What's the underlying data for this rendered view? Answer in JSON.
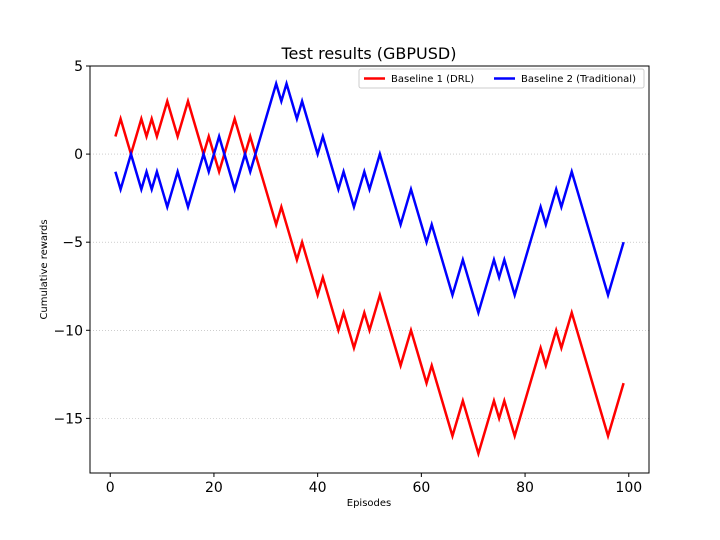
{
  "chart_data": {
    "type": "line",
    "title": "Test results (GBPUSD)",
    "xlabel": "Episodes",
    "ylabel": "Cumulative rewards",
    "xlim": [
      -3.9,
      103.9
    ],
    "ylim": [
      -18.1,
      5.0
    ],
    "xticks": [
      0,
      20,
      40,
      60,
      80,
      100
    ],
    "xtick_labels": [
      "0",
      "20",
      "40",
      "60",
      "80",
      "100"
    ],
    "yticks": [
      5,
      0,
      -5,
      -10,
      -15
    ],
    "ytick_labels": [
      "5",
      "0",
      "−5",
      "−10",
      "−15"
    ],
    "grid": "horizontal dotted lines at y ticks",
    "legend_position": "top-right",
    "series": [
      {
        "name": "Baseline 1 (DRL)",
        "color": "#ff0000",
        "x": [
          1,
          2,
          3,
          4,
          5,
          6,
          7,
          8,
          9,
          10,
          11,
          12,
          13,
          14,
          15,
          16,
          17,
          18,
          19,
          20,
          21,
          22,
          23,
          24,
          25,
          26,
          27,
          28,
          29,
          30,
          31,
          32,
          33,
          34,
          35,
          36,
          37,
          38,
          39,
          40,
          41,
          42,
          43,
          44,
          45,
          46,
          47,
          48,
          49,
          50,
          51,
          52,
          53,
          54,
          55,
          56,
          57,
          58,
          59,
          60,
          61,
          62,
          63,
          64,
          65,
          66,
          67,
          68,
          69,
          70,
          71,
          72,
          73,
          74,
          75,
          76,
          77,
          78,
          79,
          80,
          81,
          82,
          83,
          84,
          85,
          86,
          87,
          88,
          89,
          90,
          91,
          92,
          93,
          94,
          95,
          96,
          97,
          98,
          99
        ],
        "values": [
          1,
          2,
          1,
          0,
          1,
          2,
          1,
          2,
          1,
          2,
          3,
          2,
          1,
          2,
          3,
          2,
          1,
          0,
          1,
          0,
          -1,
          0,
          1,
          2,
          1,
          0,
          1,
          0,
          -1,
          -2,
          -3,
          -4,
          -3,
          -4,
          -5,
          -6,
          -5,
          -6,
          -7,
          -8,
          -7,
          -8,
          -9,
          -10,
          -9,
          -10,
          -11,
          -10,
          -9,
          -10,
          -9,
          -8,
          -9,
          -10,
          -11,
          -12,
          -11,
          -10,
          -11,
          -12,
          -13,
          -12,
          -13,
          -14,
          -15,
          -16,
          -15,
          -14,
          -15,
          -16,
          -17,
          -16,
          -15,
          -14,
          -15,
          -14,
          -15,
          -16,
          -15,
          -14,
          -13,
          -12,
          -11,
          -12,
          -11,
          -10,
          -11,
          -10,
          -9,
          -10,
          -11,
          -12,
          -13,
          -14,
          -15,
          -16,
          -15,
          -14,
          -13
        ]
      },
      {
        "name": "Baseline 2 (Traditional)",
        "color": "#0000ff",
        "x": [
          1,
          2,
          3,
          4,
          5,
          6,
          7,
          8,
          9,
          10,
          11,
          12,
          13,
          14,
          15,
          16,
          17,
          18,
          19,
          20,
          21,
          22,
          23,
          24,
          25,
          26,
          27,
          28,
          29,
          30,
          31,
          32,
          33,
          34,
          35,
          36,
          37,
          38,
          39,
          40,
          41,
          42,
          43,
          44,
          45,
          46,
          47,
          48,
          49,
          50,
          51,
          52,
          53,
          54,
          55,
          56,
          57,
          58,
          59,
          60,
          61,
          62,
          63,
          64,
          65,
          66,
          67,
          68,
          69,
          70,
          71,
          72,
          73,
          74,
          75,
          76,
          77,
          78,
          79,
          80,
          81,
          82,
          83,
          84,
          85,
          86,
          87,
          88,
          89,
          90,
          91,
          92,
          93,
          94,
          95,
          96,
          97,
          98,
          99
        ],
        "values": [
          -1,
          -2,
          -1,
          0,
          -1,
          -2,
          -1,
          -2,
          -1,
          -2,
          -3,
          -2,
          -1,
          -2,
          -3,
          -2,
          -1,
          0,
          -1,
          0,
          1,
          0,
          -1,
          -2,
          -1,
          0,
          -1,
          0,
          1,
          2,
          3,
          4,
          3,
          4,
          3,
          2,
          3,
          2,
          1,
          0,
          1,
          0,
          -1,
          -2,
          -1,
          -2,
          -3,
          -2,
          -1,
          -2,
          -1,
          0,
          -1,
          -2,
          -3,
          -4,
          -3,
          -2,
          -3,
          -4,
          -5,
          -4,
          -5,
          -6,
          -7,
          -8,
          -7,
          -6,
          -7,
          -8,
          -9,
          -8,
          -7,
          -6,
          -7,
          -6,
          -7,
          -8,
          -7,
          -6,
          -5,
          -4,
          -3,
          -4,
          -3,
          -2,
          -3,
          -2,
          -1,
          -2,
          -3,
          -4,
          -5,
          -6,
          -7,
          -8,
          -7,
          -6,
          -5
        ]
      }
    ]
  }
}
